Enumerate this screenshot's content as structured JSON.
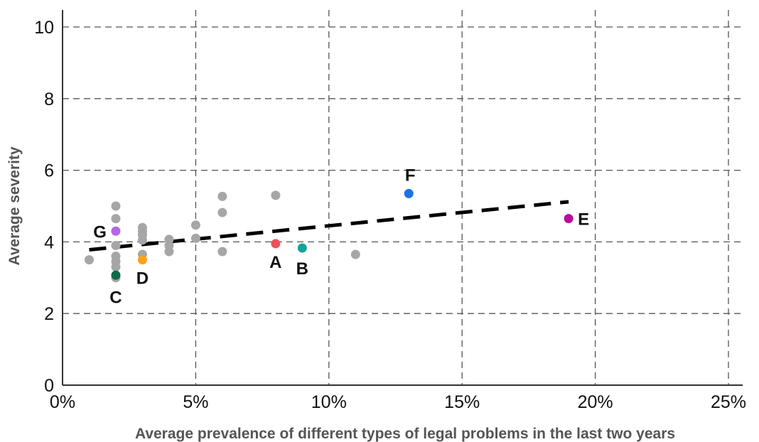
{
  "chart_data": {
    "type": "scatter",
    "xlabel": "Average prevalence of different types of legal problems in the last two years",
    "ylabel": "Average severity",
    "xlim": [
      0,
      25
    ],
    "ylim": [
      0,
      10
    ],
    "x_ticks": [
      "0%",
      "5%",
      "10%",
      "15%",
      "20%",
      "25%"
    ],
    "x_tick_values": [
      0,
      5,
      10,
      15,
      20,
      25
    ],
    "y_ticks": [
      "0",
      "2",
      "4",
      "6",
      "8",
      "10"
    ],
    "y_tick_values": [
      0,
      2,
      4,
      6,
      8,
      10
    ],
    "grid": true,
    "colors": {
      "other_points": "#a6a6a6",
      "trendline": "#000000",
      "axis": "#333333",
      "grid": "#555555"
    },
    "series": [
      {
        "points": [
          {
            "x": 1,
            "y": 3.5
          },
          {
            "x": 2,
            "y": 5.0
          },
          {
            "x": 2,
            "y": 4.65
          },
          {
            "x": 2,
            "y": 3.9
          },
          {
            "x": 2,
            "y": 3.6
          },
          {
            "x": 2,
            "y": 3.45
          },
          {
            "x": 2,
            "y": 3.3
          },
          {
            "x": 2,
            "y": 3.0
          },
          {
            "x": 3,
            "y": 4.4
          },
          {
            "x": 3,
            "y": 4.3
          },
          {
            "x": 3,
            "y": 4.2
          },
          {
            "x": 3,
            "y": 4.05
          },
          {
            "x": 3,
            "y": 3.65
          },
          {
            "x": 4,
            "y": 4.07
          },
          {
            "x": 4,
            "y": 3.9
          },
          {
            "x": 4,
            "y": 3.73
          },
          {
            "x": 5,
            "y": 4.47
          },
          {
            "x": 5,
            "y": 4.1
          },
          {
            "x": 6,
            "y": 5.27
          },
          {
            "x": 6,
            "y": 4.82
          },
          {
            "x": 6,
            "y": 3.73
          },
          {
            "x": 8,
            "y": 5.3
          },
          {
            "x": 11,
            "y": 3.65
          }
        ]
      },
      {
        "labeled_points": [
          {
            "label": "A",
            "x": 8,
            "y": 3.95,
            "color": "#f0505a"
          },
          {
            "label": "B",
            "x": 9,
            "y": 3.83,
            "color": "#16a39a"
          },
          {
            "label": "C",
            "x": 2,
            "y": 3.07,
            "color": "#0f6b45"
          },
          {
            "label": "D",
            "x": 3,
            "y": 3.5,
            "color": "#ffa21a"
          },
          {
            "label": "E",
            "x": 19,
            "y": 4.65,
            "color": "#b5109a"
          },
          {
            "label": "F",
            "x": 13,
            "y": 5.35,
            "color": "#1a73e8"
          },
          {
            "label": "G",
            "x": 2,
            "y": 4.3,
            "color": "#b565e8"
          }
        ]
      }
    ],
    "trendline": {
      "x": [
        1,
        19
      ],
      "y": [
        3.78,
        5.12
      ],
      "style": "dashed"
    }
  }
}
